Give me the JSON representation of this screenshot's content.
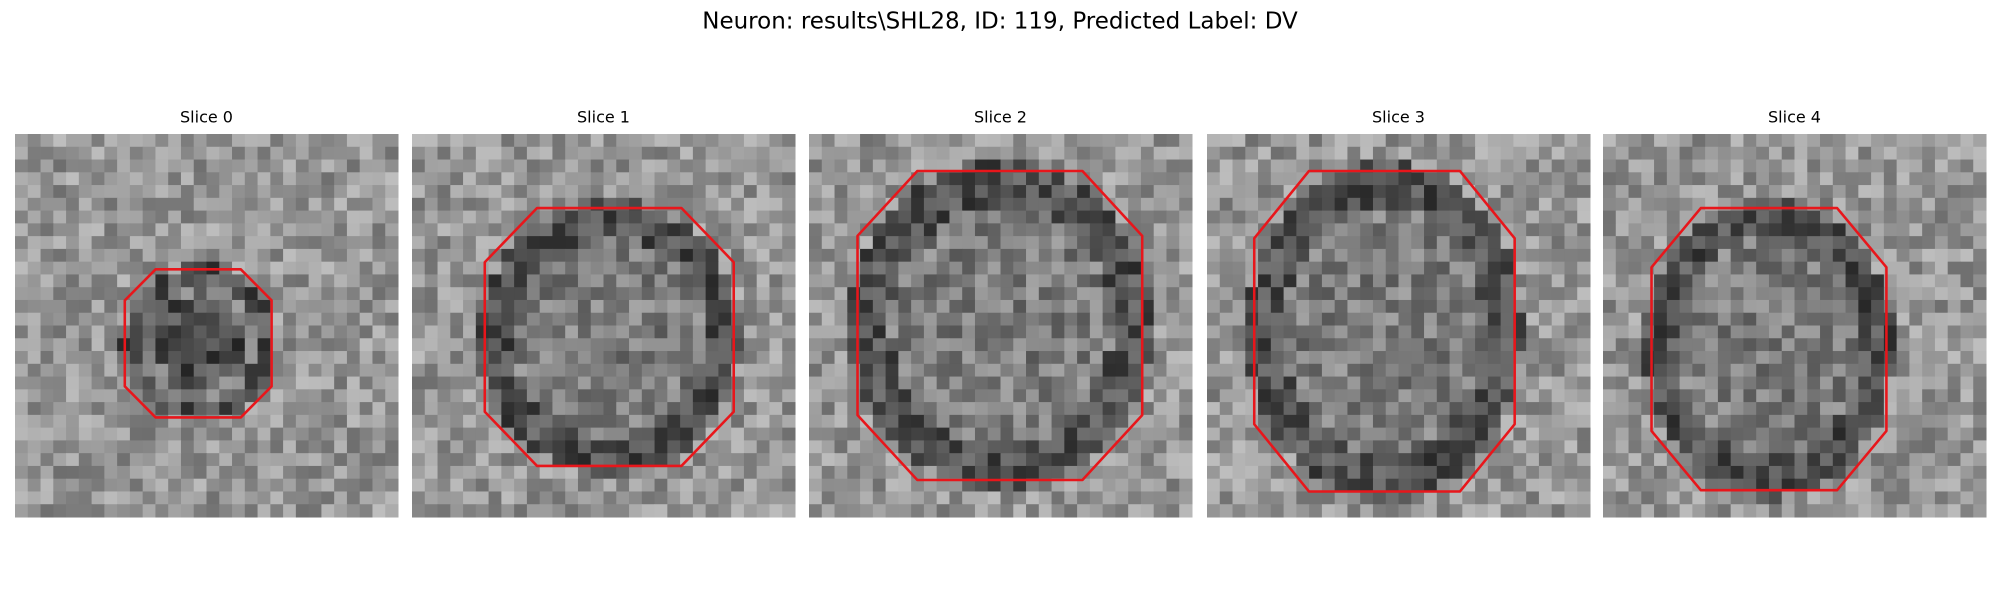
{
  "title": "Neuron: results\\SHL28, ID: 119, Predicted Label: DV",
  "panels": [
    {
      "title": "Slice 0"
    },
    {
      "title": "Slice 1"
    },
    {
      "title": "Slice 2"
    },
    {
      "title": "Slice 3"
    },
    {
      "title": "Slice 4"
    }
  ]
}
